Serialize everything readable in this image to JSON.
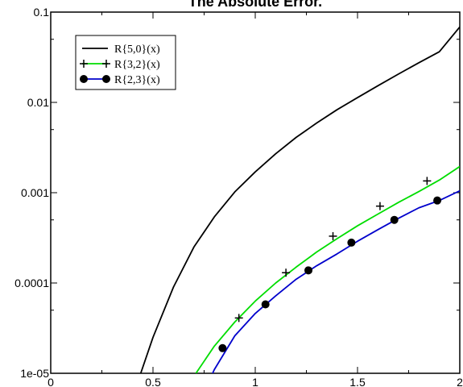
{
  "chart_data": {
    "type": "line",
    "title": "The Absolute Error.",
    "xlabel": "",
    "ylabel": "",
    "xlim": [
      0,
      2
    ],
    "ylim": [
      1e-05,
      0.1
    ],
    "yscale": "log",
    "grid": false,
    "legend_position": "top-left",
    "x_ticks": [
      {
        "value": 0,
        "label": "0"
      },
      {
        "value": 0.5,
        "label": "0.5"
      },
      {
        "value": 1,
        "label": "1"
      },
      {
        "value": 1.5,
        "label": "1.5"
      },
      {
        "value": 2,
        "label": "2"
      }
    ],
    "y_ticks": [
      {
        "value": 1e-05,
        "label": "1e-05"
      },
      {
        "value": 0.0001,
        "label": "0.0001"
      },
      {
        "value": 0.001,
        "label": "0.001"
      },
      {
        "value": 0.01,
        "label": "0.01"
      },
      {
        "value": 0.1,
        "label": "0.1"
      }
    ],
    "series": [
      {
        "name": "R{5,0}(x)",
        "color": "#000000",
        "marker": "none",
        "x": [
          0.44,
          0.5,
          0.6,
          0.7,
          0.8,
          0.9,
          1.0,
          1.1,
          1.2,
          1.3,
          1.4,
          1.5,
          1.6,
          1.7,
          1.8,
          1.9,
          2.0
        ],
        "y": [
          1e-05,
          2.5e-05,
          9e-05,
          0.00025,
          0.00054,
          0.00102,
          0.0017,
          0.0027,
          0.0041,
          0.0059,
          0.0083,
          0.0113,
          0.0153,
          0.0206,
          0.0275,
          0.0364,
          0.0685
        ]
      },
      {
        "name": "R{3,2}(x)",
        "color": "#00dd00",
        "marker": "plus",
        "x": [
          0.71,
          0.8,
          0.9,
          1.0,
          1.1,
          1.2,
          1.3,
          1.4,
          1.5,
          1.6,
          1.7,
          1.8,
          1.9,
          2.0
        ],
        "y": [
          1e-05,
          2e-05,
          3.7e-05,
          6.3e-05,
          0.0001,
          0.00015,
          0.00022,
          0.00031,
          0.00043,
          0.00058,
          0.00078,
          0.00103,
          0.00138,
          0.00195
        ],
        "markers_x": [
          0.92,
          1.15,
          1.38,
          1.61,
          1.84
        ],
        "markers_y": [
          4.1e-05,
          0.00013,
          0.00033,
          0.00071,
          0.00135
        ]
      },
      {
        "name": "R{2,3}(x)",
        "color": "#0000cc",
        "marker": "circle",
        "x": [
          0.75,
          0.8,
          0.9,
          1.0,
          1.1,
          1.2,
          1.3,
          1.4,
          1.5,
          1.6,
          1.7,
          1.8,
          1.9,
          2.0
        ],
        "y": [
          6.3e-06,
          1.1e-05,
          2.6e-05,
          4.6e-05,
          7.2e-05,
          0.00011,
          0.000155,
          0.00021,
          0.00029,
          0.00039,
          0.00052,
          0.00068,
          0.00082,
          0.00105
        ],
        "markers_x": [
          0.84,
          1.05,
          1.26,
          1.47,
          1.68,
          1.89
        ],
        "markers_y": [
          1.9e-05,
          5.8e-05,
          0.000138,
          0.00028,
          0.0005,
          0.00082
        ]
      }
    ]
  }
}
